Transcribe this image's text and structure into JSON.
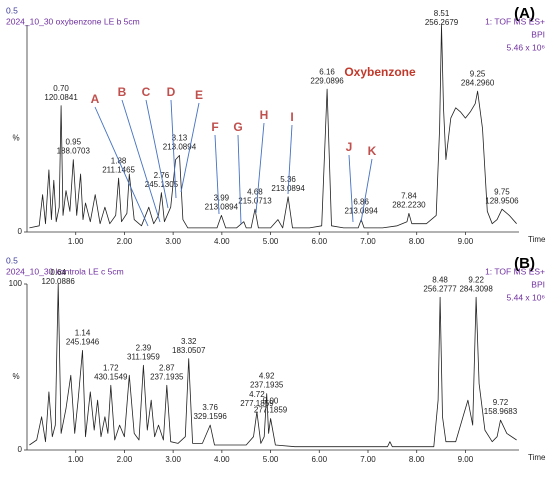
{
  "chart_data": [
    {
      "type": "line",
      "panel": "(A)",
      "scale_label": "0.5",
      "title": "2024_10_30 oxybenzone LE b 5cm",
      "detector": "1: TOF MS ES+",
      "trace_type": "BPI",
      "intensity": "5.46 x 10⁶",
      "y_label": "%",
      "x_label": "Time",
      "color": "#222222",
      "xlim": [
        0,
        10.1
      ],
      "ylim": [
        0,
        100
      ],
      "yticks": [
        0
      ],
      "xticks": [
        {
          "value": 1,
          "label": "1.00"
        },
        {
          "value": 2,
          "label": "2.00"
        },
        {
          "value": 3,
          "label": "3.00"
        },
        {
          "value": 4,
          "label": "4.00"
        },
        {
          "value": 5,
          "label": "5.00"
        },
        {
          "value": 6,
          "label": "6.00"
        },
        {
          "value": 7,
          "label": "7.00"
        },
        {
          "value": 8,
          "label": "8.00"
        },
        {
          "value": 9,
          "label": "9.00"
        }
      ],
      "x": [
        0.05,
        0.25,
        0.32,
        0.38,
        0.45,
        0.5,
        0.55,
        0.6,
        0.66,
        0.7,
        0.74,
        0.8,
        0.88,
        0.95,
        1.02,
        1.1,
        1.15,
        1.2,
        1.3,
        1.4,
        1.5,
        1.6,
        1.7,
        1.82,
        1.88,
        1.94,
        2.05,
        2.1,
        2.2,
        2.35,
        2.5,
        2.6,
        2.7,
        2.76,
        2.82,
        2.95,
        3.05,
        3.13,
        3.2,
        3.3,
        3.5,
        3.9,
        3.99,
        4.08,
        4.3,
        4.45,
        4.5,
        4.6,
        4.68,
        4.75,
        5.0,
        5.15,
        5.25,
        5.36,
        5.45,
        5.8,
        6.05,
        6.16,
        6.25,
        6.5,
        6.8,
        6.86,
        6.92,
        7.3,
        7.6,
        7.8,
        7.84,
        7.9,
        8.2,
        8.4,
        8.47,
        8.51,
        8.55,
        8.6,
        8.7,
        8.8,
        8.9,
        9.0,
        9.1,
        9.2,
        9.25,
        9.35,
        9.45,
        9.55,
        9.65,
        9.75,
        9.9,
        10.05
      ],
      "values": [
        2,
        3,
        18,
        4,
        30,
        6,
        25,
        5,
        12,
        61,
        8,
        20,
        10,
        35,
        8,
        28,
        6,
        14,
        5,
        18,
        4,
        12,
        4,
        8,
        26,
        5,
        9,
        28,
        6,
        3,
        12,
        4,
        8,
        19,
        5,
        12,
        35,
        37,
        6,
        2,
        2,
        2,
        8,
        2,
        2,
        5,
        2,
        2,
        11,
        2,
        2,
        6,
        2,
        17,
        2,
        2,
        3,
        69,
        3,
        2,
        2,
        6,
        2,
        2,
        3,
        5,
        9,
        4,
        4,
        8,
        50,
        100,
        60,
        35,
        55,
        60,
        58,
        55,
        58,
        62,
        68,
        50,
        10,
        4,
        6,
        11,
        8,
        4
      ],
      "peaks": [
        {
          "label": "0.70",
          "mz": "120.0841",
          "x": 0.7,
          "y": 61
        },
        {
          "label": "0.95",
          "mz": "188.0703",
          "x": 0.95,
          "y": 35
        },
        {
          "label": "1.88",
          "mz": "211.1465",
          "x": 1.88,
          "y": 26
        },
        {
          "label": "2.76",
          "mz": "245.1305",
          "x": 2.76,
          "y": 19
        },
        {
          "label": "3.13",
          "mz": "213.0894",
          "x": 3.13,
          "y": 37
        },
        {
          "label": "3.99",
          "mz": "213.0894",
          "x": 3.99,
          "y": 8
        },
        {
          "label": "4.68",
          "mz": "215.0713",
          "x": 4.68,
          "y": 11
        },
        {
          "label": "5.36",
          "mz": "213.0894",
          "x": 5.36,
          "y": 17
        },
        {
          "label": "6.16",
          "mz": "229.0896",
          "x": 6.16,
          "y": 69
        },
        {
          "label": "6.86",
          "mz": "213.0894",
          "x": 6.86,
          "y": 6
        },
        {
          "label": "7.84",
          "mz": "282.2230",
          "x": 7.84,
          "y": 9
        },
        {
          "label": "8.51",
          "mz": "256.2679",
          "x": 8.51,
          "y": 100
        },
        {
          "label": "9.25",
          "mz": "284.2960",
          "x": 9.25,
          "y": 68
        },
        {
          "label": "9.75",
          "mz": "128.9506",
          "x": 9.75,
          "y": 11
        }
      ],
      "letters": [
        "A",
        "B",
        "C",
        "D",
        "E",
        "F",
        "G",
        "H",
        "I",
        "J",
        "K"
      ],
      "compound": "Oxybenzone"
    },
    {
      "type": "line",
      "panel": "(B)",
      "scale_label": "0.5",
      "title": "2024_10_30 kontrola LE c 5cm",
      "detector": "1: TOF MS ES+",
      "trace_type": "BPI",
      "intensity": "5.44 x 10⁶",
      "y_label": "%",
      "x_label": "Time",
      "color": "#222222",
      "xlim": [
        0,
        10.1
      ],
      "ylim": [
        0,
        100
      ],
      "yticks": [
        0,
        100
      ],
      "xticks": [
        {
          "value": 1,
          "label": "1.00"
        },
        {
          "value": 2,
          "label": "2.00"
        },
        {
          "value": 3,
          "label": "3.00"
        },
        {
          "value": 4,
          "label": "4.00"
        },
        {
          "value": 5,
          "label": "5.00"
        },
        {
          "value": 6,
          "label": "6.00"
        },
        {
          "value": 7,
          "label": "7.00"
        },
        {
          "value": 8,
          "label": "8.00"
        },
        {
          "value": 9,
          "label": "9.00"
        }
      ],
      "x": [
        0.05,
        0.2,
        0.3,
        0.38,
        0.45,
        0.52,
        0.58,
        0.64,
        0.7,
        0.8,
        0.9,
        0.98,
        1.05,
        1.14,
        1.2,
        1.3,
        1.38,
        1.45,
        1.52,
        1.6,
        1.66,
        1.72,
        1.8,
        1.9,
        2.0,
        2.1,
        2.2,
        2.3,
        2.39,
        2.47,
        2.55,
        2.62,
        2.7,
        2.8,
        2.87,
        2.95,
        3.1,
        3.25,
        3.32,
        3.4,
        3.6,
        3.76,
        3.85,
        4.2,
        4.5,
        4.65,
        4.72,
        4.8,
        4.87,
        4.92,
        4.96,
        5.0,
        5.1,
        5.5,
        6.0,
        7.0,
        7.4,
        7.45,
        7.5,
        8.0,
        8.35,
        8.44,
        8.48,
        8.53,
        8.6,
        8.8,
        8.95,
        9.05,
        9.15,
        9.22,
        9.28,
        9.4,
        9.55,
        9.65,
        9.72,
        9.85,
        10.05
      ],
      "values": [
        3,
        6,
        20,
        5,
        35,
        8,
        15,
        100,
        10,
        25,
        45,
        10,
        30,
        60,
        8,
        35,
        12,
        30,
        8,
        20,
        10,
        39,
        6,
        15,
        8,
        45,
        10,
        6,
        51,
        12,
        30,
        8,
        15,
        6,
        39,
        5,
        4,
        8,
        55,
        4,
        4,
        15,
        3,
        3,
        3,
        8,
        23,
        4,
        8,
        34,
        10,
        19,
        3,
        2,
        2,
        2,
        2,
        5,
        2,
        2,
        2,
        30,
        92,
        20,
        5,
        5,
        20,
        30,
        15,
        92,
        40,
        12,
        5,
        8,
        18,
        10,
        6
      ],
      "peaks": [
        {
          "label": "0.64",
          "mz": "120.0886",
          "x": 0.64,
          "y": 100
        },
        {
          "label": "1.14",
          "mz": "245.1946",
          "x": 1.14,
          "y": 60
        },
        {
          "label": "1.72",
          "mz": "430.1549",
          "x": 1.72,
          "y": 39
        },
        {
          "label": "2.39",
          "mz": "311.1959",
          "x": 2.39,
          "y": 51
        },
        {
          "label": "2.87",
          "mz": "237.1935",
          "x": 2.87,
          "y": 39
        },
        {
          "label": "3.32",
          "mz": "183.0507",
          "x": 3.32,
          "y": 55
        },
        {
          "label": "3.76",
          "mz": "329.1596",
          "x": 3.76,
          "y": 15
        },
        {
          "label": "4.72",
          "mz": "277.1859",
          "x": 4.72,
          "y": 23
        },
        {
          "label": "4.92",
          "mz": "237.1935",
          "x": 4.92,
          "y": 34
        },
        {
          "label": "5.00",
          "mz": "277.1859",
          "x": 5.0,
          "y": 19
        },
        {
          "label": "8.48",
          "mz": "256.2777",
          "x": 8.48,
          "y": 92
        },
        {
          "label": "9.22",
          "mz": "284.3098",
          "x": 9.22,
          "y": 92
        },
        {
          "label": "9.72",
          "mz": "158.9683",
          "x": 9.72,
          "y": 18
        }
      ]
    }
  ]
}
